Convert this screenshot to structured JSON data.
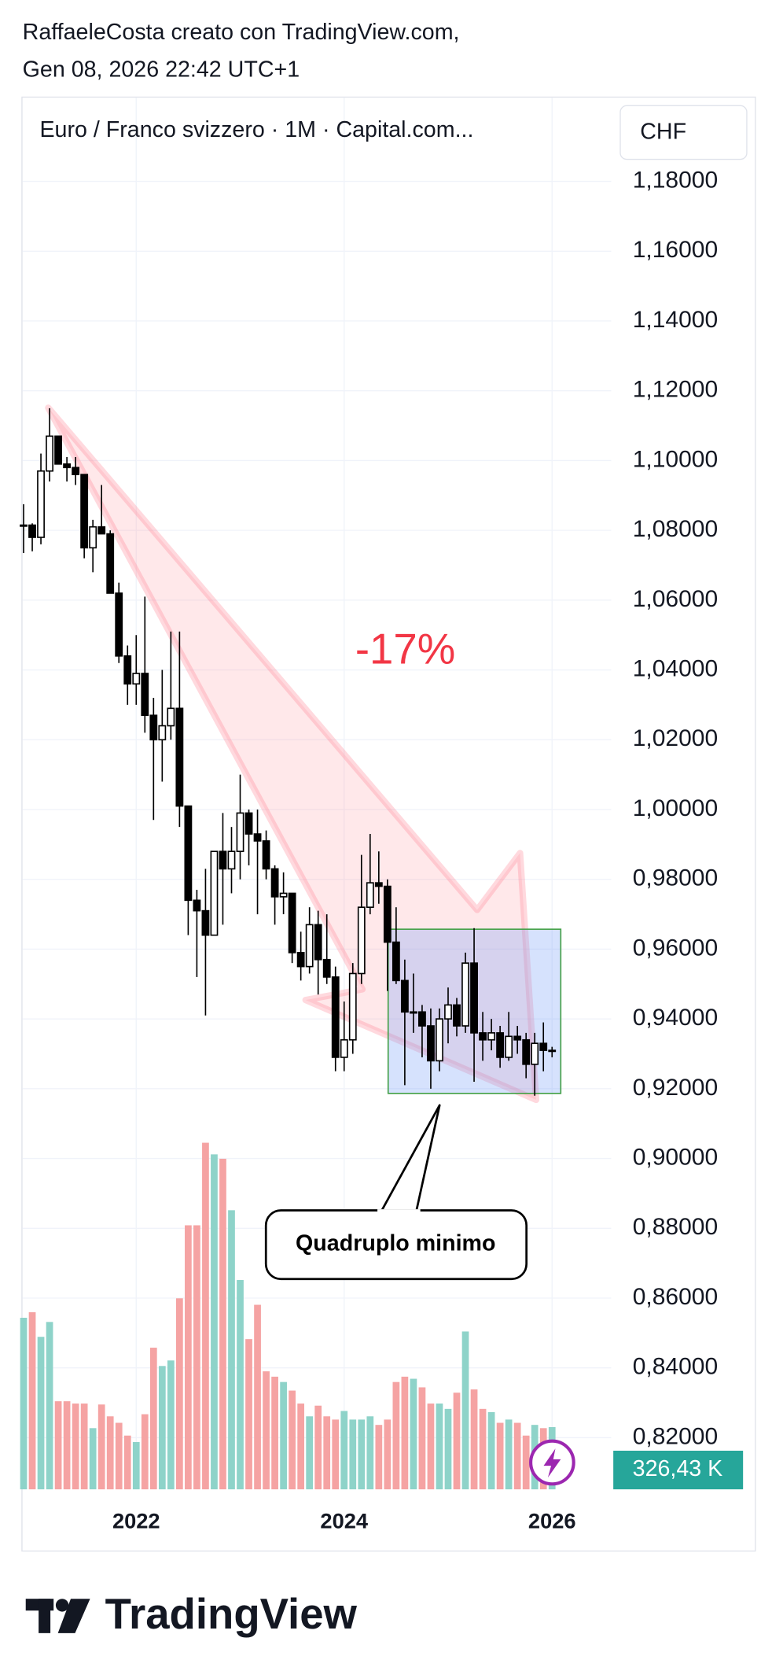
{
  "header": {
    "line1": "RaffaeleCosta creato con TradingView.com,",
    "line2": "Gen 08, 2026 22:42 UTC+1"
  },
  "footer": {
    "brand": "TradingView"
  },
  "chart_data": {
    "type": "candlestick",
    "title": "Euro / Franco svizzero · 1M · Capital.com...",
    "currency": "CHF",
    "categories": [
      null,
      null,
      null,
      null,
      null,
      null,
      null,
      null,
      null,
      null,
      null,
      null,
      null,
      "2022",
      null,
      null,
      null,
      null,
      null,
      null,
      null,
      null,
      null,
      null,
      null,
      null,
      null,
      null,
      null,
      null,
      null,
      null,
      null,
      null,
      null,
      null,
      null,
      "2024",
      null,
      null,
      null,
      null,
      null,
      null,
      null,
      null,
      null,
      null,
      null,
      null,
      null,
      null,
      null,
      null,
      null,
      null,
      null,
      null,
      null,
      null,
      null,
      "2026"
    ],
    "open": [
      1.0815,
      1.0815,
      1.078,
      1.097,
      1.107,
      1.099,
      1.098,
      1.096,
      1.075,
      1.081,
      1.079,
      1.062,
      1.044,
      1.036,
      1.039,
      1.027,
      1.02,
      1.024,
      1.029,
      1.001,
      0.974,
      0.971,
      0.964,
      0.988,
      0.983,
      0.988,
      0.999,
      0.993,
      0.991,
      0.983,
      0.975,
      0.976,
      0.959,
      0.955,
      0.967,
      0.957,
      0.952,
      0.929,
      0.934,
      0.953,
      0.972,
      0.979,
      0.978,
      0.962,
      0.951,
      0.942,
      0.942,
      0.938,
      0.928,
      0.94,
      0.944,
      0.938,
      0.956,
      0.936,
      0.934,
      0.936,
      0.929,
      0.935,
      0.934,
      0.927,
      0.933,
      0.931
    ],
    "high": [
      1.0875,
      1.082,
      1.102,
      1.115,
      1.107,
      1.101,
      1.101,
      1.096,
      1.083,
      1.093,
      1.08,
      1.065,
      1.047,
      1.05,
      1.061,
      1.032,
      1.04,
      1.051,
      1.051,
      1.0,
      0.977,
      0.983,
      0.986,
      0.999,
      0.995,
      1.01,
      1.0,
      1.0,
      0.994,
      0.984,
      0.982,
      0.976,
      0.965,
      0.972,
      0.971,
      0.97,
      0.955,
      0.945,
      0.956,
      0.987,
      0.993,
      0.988,
      0.98,
      0.972,
      0.957,
      0.953,
      0.944,
      0.943,
      0.943,
      0.949,
      0.946,
      0.959,
      0.966,
      0.942,
      0.94,
      0.938,
      0.942,
      0.938,
      0.936,
      0.936,
      0.939,
      0.932
    ],
    "low": [
      1.0735,
      1.074,
      1.076,
      1.094,
      1.099,
      1.094,
      1.093,
      1.072,
      1.068,
      1.08,
      1.062,
      1.042,
      1.03,
      1.03,
      1.022,
      0.997,
      1.008,
      1.02,
      0.995,
      0.964,
      0.952,
      0.941,
      0.964,
      0.967,
      0.976,
      0.98,
      0.984,
      0.97,
      0.98,
      0.967,
      0.97,
      0.956,
      0.951,
      0.953,
      0.947,
      0.95,
      0.925,
      0.925,
      0.93,
      0.95,
      0.97,
      0.973,
      0.948,
      0.95,
      0.921,
      0.936,
      0.929,
      0.92,
      0.925,
      0.933,
      0.935,
      0.936,
      0.922,
      0.928,
      0.931,
      0.926,
      0.928,
      0.93,
      0.923,
      0.918,
      0.925,
      0.929
    ],
    "close": [
      1.0815,
      1.078,
      1.097,
      1.107,
      1.099,
      1.098,
      1.096,
      1.075,
      1.081,
      1.079,
      1.062,
      1.044,
      1.036,
      1.039,
      1.027,
      1.02,
      1.024,
      1.029,
      1.001,
      0.974,
      0.971,
      0.964,
      0.988,
      0.983,
      0.988,
      0.999,
      0.993,
      0.991,
      0.983,
      0.975,
      0.976,
      0.959,
      0.955,
      0.967,
      0.957,
      0.952,
      0.929,
      0.934,
      0.953,
      0.972,
      0.979,
      0.978,
      0.962,
      0.951,
      0.942,
      0.942,
      0.938,
      0.928,
      0.94,
      0.944,
      0.938,
      0.956,
      0.936,
      0.934,
      0.936,
      0.929,
      0.935,
      0.934,
      0.927,
      0.933,
      0.931,
      0.931
    ],
    "up_color": "#000000",
    "down_color": "#000000",
    "up_fill": "#ffffff",
    "down_fill": "#000000",
    "volume": {
      "values": [
        900,
        929,
        800,
        878,
        462,
        462,
        450,
        450,
        321,
        445,
        383,
        349,
        282,
        248,
        394,
        743,
        647,
        676,
        1002,
        1385,
        1385,
        1818,
        1757,
        1734,
        1464,
        1098,
        788,
        968,
        619,
        591,
        563,
        518,
        450,
        383,
        439,
        383,
        366,
        411,
        366,
        366,
        383,
        338,
        366,
        563,
        591,
        580,
        535,
        450,
        450,
        422,
        507,
        828,
        524,
        422,
        405,
        349,
        366,
        349,
        282,
        338,
        321,
        326.43
      ],
      "up_color": "#8ed3c9",
      "down_color": "#f5a3a3",
      "last_label": "326,43 K",
      "label_color": "#26a69a"
    },
    "ylim": [
      0.8052,
      1.2043
    ],
    "yticks": [
      {
        "value": 0.82,
        "label": "0,82000"
      },
      {
        "value": 0.84,
        "label": "0,84000"
      },
      {
        "value": 0.86,
        "label": "0,86000"
      },
      {
        "value": 0.88,
        "label": "0,88000"
      },
      {
        "value": 0.9,
        "label": "0,90000"
      },
      {
        "value": 0.92,
        "label": "0,92000"
      },
      {
        "value": 0.94,
        "label": "0,94000"
      },
      {
        "value": 0.96,
        "label": "0,96000"
      },
      {
        "value": 0.98,
        "label": "0,98000"
      },
      {
        "value": 1.0,
        "label": "1,00000"
      },
      {
        "value": 1.02,
        "label": "1,02000"
      },
      {
        "value": 1.04,
        "label": "1,04000"
      },
      {
        "value": 1.06,
        "label": "1,06000"
      },
      {
        "value": 1.08,
        "label": "1,08000"
      },
      {
        "value": 1.1,
        "label": "1,10000"
      },
      {
        "value": 1.12,
        "label": "1,12000"
      },
      {
        "value": 1.14,
        "label": "1,14000"
      },
      {
        "value": 1.16,
        "label": "1,16000"
      },
      {
        "value": 1.18,
        "label": "1,18000"
      }
    ],
    "grid": true,
    "annotations": {
      "change": "-17%",
      "change_color": "#f23645",
      "callout": "Quadruplo minimo"
    }
  }
}
